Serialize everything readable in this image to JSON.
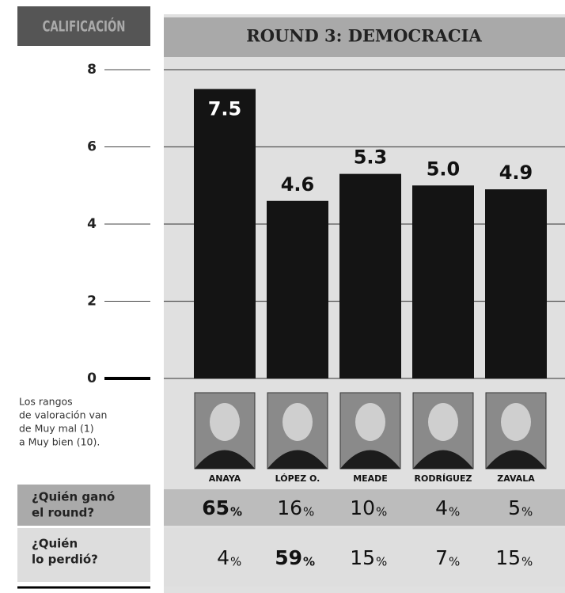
{
  "chart_data": {
    "type": "bar",
    "title": "ROUND 3: DEMOCRACIA",
    "y_label": "CALIFICACIÓN",
    "categories": [
      "ANAYA",
      "LÓPEZ O.",
      "MEADE",
      "RODRÍGUEZ",
      "ZAVALA"
    ],
    "values": [
      7.5,
      4.6,
      5.3,
      5.0,
      4.9
    ],
    "value_labels": [
      "7.5",
      "4.6",
      "5.3",
      "5.0",
      "4.9"
    ],
    "color": "#141414",
    "ylim": [
      0,
      8
    ],
    "yticks": [
      0,
      2,
      4,
      6,
      8
    ],
    "grid": true,
    "note": [
      "Los rangos",
      "de valoración van",
      "de Muy mal (1)",
      "a Muy bien (10)."
    ]
  },
  "table": {
    "unit": "%",
    "rows": [
      {
        "label": [
          "¿Quién ganó",
          "el round?"
        ],
        "values": [
          65,
          16,
          10,
          4,
          5
        ]
      },
      {
        "label": [
          "¿Quién",
          "lo perdió?"
        ],
        "values": [
          4,
          59,
          15,
          7,
          15
        ]
      }
    ]
  }
}
